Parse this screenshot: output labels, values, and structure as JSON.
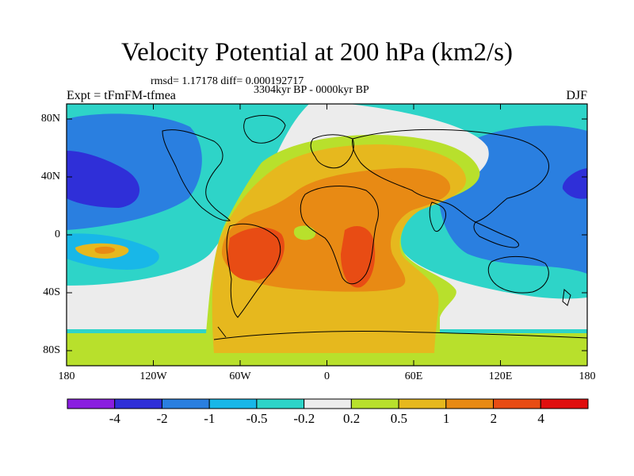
{
  "title": "Velocity Potential at 200 hPa (km2/s)",
  "stats": "rmsd= 1.17178 diff= 0.000192717",
  "period": "3304kyr BP - 0000kyr BP",
  "experiment": "Expt = tFmFM-tfmea",
  "season": "DJF",
  "lat_labels": [
    "80N",
    "40N",
    "0",
    "40S",
    "80S"
  ],
  "lon_labels": [
    "180",
    "120W",
    "60W",
    "0",
    "60E",
    "120E",
    "180"
  ],
  "colorbar": {
    "labels": [
      "-4",
      "-2",
      "-1",
      "-0.5",
      "-0.2",
      "0.2",
      "0.5",
      "1",
      "2",
      "4"
    ],
    "colors": [
      "#8a1ee0",
      "#2f2fd8",
      "#2a7fe0",
      "#18b7e8",
      "#2ed4c8",
      "#ececec",
      "#b8e02c",
      "#e6b81e",
      "#e88a14",
      "#e84c14",
      "#e00e0e"
    ]
  }
}
